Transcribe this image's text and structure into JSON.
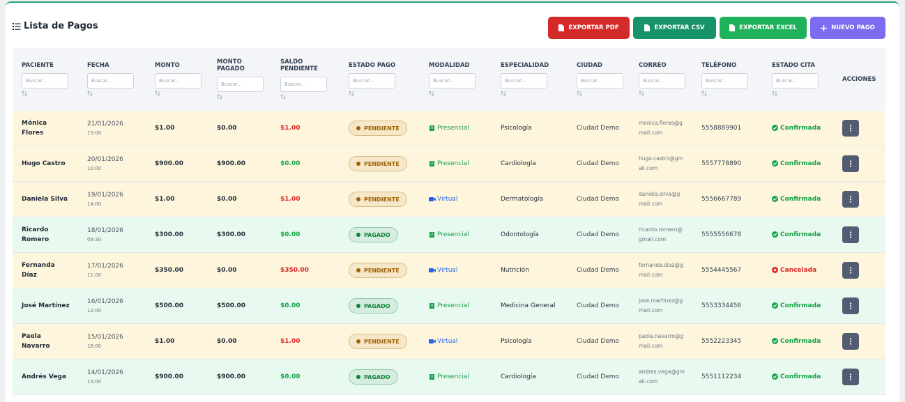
{
  "header": {
    "title": "Lista de Pagos",
    "buttons": [
      "EXPORTAR PDF",
      "EXPORTAR CSV",
      "EXPORTAR EXCEL",
      "NUEVO PAGO"
    ]
  },
  "table": {
    "columns": [
      "PACIENTE",
      "FECHA",
      "MONTO",
      "MONTO PAGADO",
      "SALDO PENDIENTE",
      "ESTADO PAGO",
      "MODALIDAD",
      "ESPECIALIDAD",
      "CIUDAD",
      "CORREO",
      "TELÉFONO",
      "ESTADO CITA",
      "ACCIONES"
    ],
    "search_placeholder": "Buscar...",
    "rows": [
      {
        "paciente": "Mónica Flores",
        "fecha": "21/01/2026",
        "hora": "15:00",
        "monto": "$1.00",
        "monto_pagado": "$0.00",
        "saldo_pendiente": "$1.00",
        "estado_pago": "PENDIENTE",
        "modalidad": "Presencial",
        "especialidad": "Psicología",
        "ciudad": "Ciudad Demo",
        "correo": "monica.flores@gmail.com",
        "telefono": "5558889901",
        "estado_cita": "Confirmada",
        "row_color": "#fef6dc",
        "saldo_color": "#dc2626",
        "badge_color": "#a16207",
        "modalidad_color": "#16a34a",
        "modalidad_icon": "building",
        "cita_color": "#16a34a",
        "cita_icon": "check"
      },
      {
        "paciente": "Hugo Castro",
        "fecha": "20/01/2026",
        "hora": "10:00",
        "monto": "$900.00",
        "monto_pagado": "$900.00",
        "saldo_pendiente": "$0.00",
        "estado_pago": "PENDIENTE",
        "modalidad": "Presencial",
        "especialidad": "Cardiología",
        "ciudad": "Ciudad Demo",
        "correo": "hugo.castro@gmail.com",
        "telefono": "5557778890",
        "estado_cita": "Confirmada",
        "row_color": "#fef6dc",
        "saldo_color": "#16a34a",
        "badge_color": "#a16207",
        "modalidad_color": "#16a34a",
        "modalidad_icon": "building",
        "cita_color": "#16a34a",
        "cita_icon": "check"
      },
      {
        "paciente": "Daniela Silva",
        "fecha": "19/01/2026",
        "hora": "14:00",
        "monto": "$1.00",
        "monto_pagado": "$0.00",
        "saldo_pendiente": "$1.00",
        "estado_pago": "PENDIENTE",
        "modalidad": "Virtual",
        "especialidad": "Dermatología",
        "ciudad": "Ciudad Demo",
        "correo": "daniela.silva@gmail.com",
        "telefono": "5556667789",
        "estado_cita": "Confirmada",
        "row_color": "#fef6dc",
        "saldo_color": "#dc2626",
        "badge_color": "#a16207",
        "modalidad_color": "#2563eb",
        "modalidad_icon": "video",
        "cita_color": "#16a34a",
        "cita_icon": "check"
      },
      {
        "paciente": "Ricardo Romero",
        "fecha": "18/01/2026",
        "hora": "09:30",
        "monto": "$300.00",
        "monto_pagado": "$300.00",
        "saldo_pendiente": "$0.00",
        "estado_pago": "PAGADO",
        "modalidad": "Presencial",
        "especialidad": "Odontología",
        "ciudad": "Ciudad Demo",
        "correo": "ricardo.romero@gmail.com",
        "telefono": "5555556678",
        "estado_cita": "Confirmada",
        "row_color": "#e8f9ef",
        "saldo_color": "#16a34a",
        "badge_color": "#15803d",
        "modalidad_color": "#16a34a",
        "modalidad_icon": "building",
        "cita_color": "#16a34a",
        "cita_icon": "check"
      },
      {
        "paciente": "Fernanda Díaz",
        "fecha": "17/01/2026",
        "hora": "11:00",
        "monto": "$350.00",
        "monto_pagado": "$0.00",
        "saldo_pendiente": "$350.00",
        "estado_pago": "PENDIENTE",
        "modalidad": "Virtual",
        "especialidad": "Nutrición",
        "ciudad": "Ciudad Demo",
        "correo": "fernanda.diaz@gmail.com",
        "telefono": "5554445567",
        "estado_cita": "Cancelada",
        "row_color": "#fef6dc",
        "saldo_color": "#dc2626",
        "badge_color": "#a16207",
        "modalidad_color": "#2563eb",
        "modalidad_icon": "video",
        "cita_color": "#dc2626",
        "cita_icon": "cross"
      },
      {
        "paciente": "José Martínez",
        "fecha": "16/01/2026",
        "hora": "12:00",
        "monto": "$500.00",
        "monto_pagado": "$500.00",
        "saldo_pendiente": "$0.00",
        "estado_pago": "PAGADO",
        "modalidad": "Presencial",
        "especialidad": "Medicina General",
        "ciudad": "Ciudad Demo",
        "correo": "jose.martinez@gmail.com",
        "telefono": "5553334456",
        "estado_cita": "Confirmada",
        "row_color": "#e8f9ef",
        "saldo_color": "#16a34a",
        "badge_color": "#15803d",
        "modalidad_color": "#16a34a",
        "modalidad_icon": "building",
        "cita_color": "#16a34a",
        "cita_icon": "check"
      },
      {
        "paciente": "Paola Navarro",
        "fecha": "15/01/2026",
        "hora": "16:00",
        "monto": "$1.00",
        "monto_pagado": "$0.00",
        "saldo_pendiente": "$1.00",
        "estado_pago": "PENDIENTE",
        "modalidad": "Virtual",
        "especialidad": "Psicología",
        "ciudad": "Ciudad Demo",
        "correo": "paola.navarro@gmail.com",
        "telefono": "5552223345",
        "estado_cita": "Confirmada",
        "row_color": "#fef6dc",
        "saldo_color": "#dc2626",
        "badge_color": "#a16207",
        "modalidad_color": "#2563eb",
        "modalidad_icon": "video",
        "cita_color": "#16a34a",
        "cita_icon": "check"
      },
      {
        "paciente": "Andrés Vega",
        "fecha": "14/01/2026",
        "hora": "15:00",
        "monto": "$900.00",
        "monto_pagado": "$900.00",
        "saldo_pendiente": "$0.00",
        "estado_pago": "PAGADO",
        "modalidad": "Presencial",
        "especialidad": "Cardiología",
        "ciudad": "Ciudad Demo",
        "correo": "andres.vega@gmail.com",
        "telefono": "5551112234",
        "estado_cita": "Confirmada",
        "row_color": "#e8f9ef",
        "saldo_color": "#16a34a",
        "badge_color": "#15803d",
        "modalidad_color": "#16a34a",
        "modalidad_icon": "building",
        "cita_color": "#16a34a",
        "cita_icon": "check"
      }
    ]
  }
}
